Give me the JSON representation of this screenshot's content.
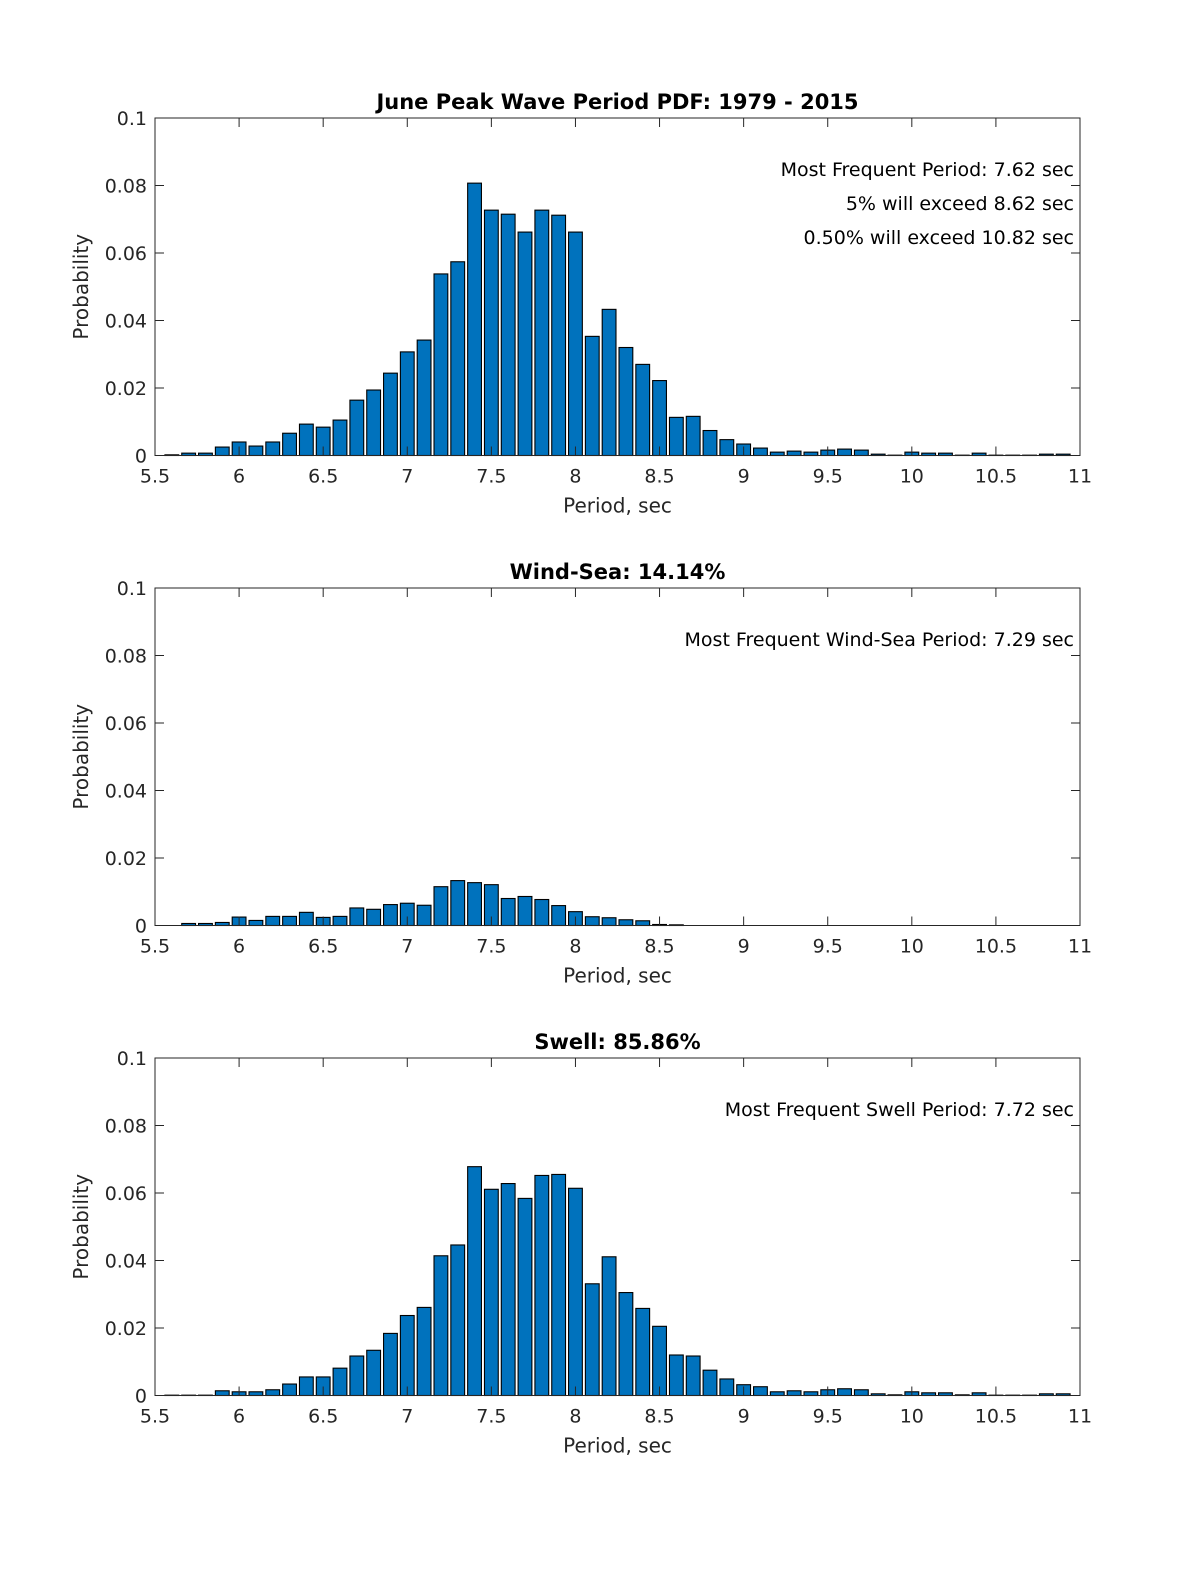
{
  "chart_data": [
    {
      "type": "bar",
      "title": "June Peak Wave Period PDF: 1979 - 2015",
      "xlabel": "Period, sec",
      "ylabel": "Probability",
      "xlim": [
        5.5,
        11
      ],
      "ylim": [
        0,
        0.1
      ],
      "xticks": [
        "5.5",
        "6",
        "6.5",
        "7",
        "7.5",
        "8",
        "8.5",
        "9",
        "9.5",
        "10",
        "10.5",
        "11"
      ],
      "yticks": [
        "0",
        "0.02",
        "0.04",
        "0.06",
        "0.08",
        "0.1"
      ],
      "grid": false,
      "bar_color": "#0072BD",
      "annotations": [
        "Most Frequent Period: 7.62 sec",
        "5% will exceed 8.62 sec",
        "0.50% will exceed 10.82 sec"
      ],
      "x": [
        5.6,
        5.7,
        5.8,
        5.9,
        6.0,
        6.1,
        6.2,
        6.3,
        6.4,
        6.5,
        6.6,
        6.7,
        6.8,
        6.9,
        7.0,
        7.1,
        7.2,
        7.3,
        7.4,
        7.5,
        7.6,
        7.7,
        7.8,
        7.9,
        8.0,
        8.1,
        8.2,
        8.3,
        8.4,
        8.5,
        8.6,
        8.7,
        8.8,
        8.9,
        9.0,
        9.1,
        9.2,
        9.3,
        9.4,
        9.5,
        9.6,
        9.7,
        9.8,
        9.9,
        10.0,
        10.1,
        10.2,
        10.3,
        10.4,
        10.5,
        10.6,
        10.7,
        10.8,
        10.9
      ],
      "values": [
        0.0002,
        0.0007,
        0.0007,
        0.0025,
        0.004,
        0.0028,
        0.004,
        0.0066,
        0.0093,
        0.0084,
        0.0105,
        0.0164,
        0.0194,
        0.0244,
        0.0307,
        0.0342,
        0.0538,
        0.0574,
        0.0807,
        0.0727,
        0.0715,
        0.0662,
        0.0727,
        0.0712,
        0.0662,
        0.0353,
        0.0433,
        0.032,
        0.027,
        0.0222,
        0.0113,
        0.0116,
        0.0074,
        0.0047,
        0.0034,
        0.0022,
        0.001,
        0.0013,
        0.001,
        0.0016,
        0.0019,
        0.0016,
        0.0004,
        0.0001,
        0.001,
        0.0007,
        0.0007,
        0.0001,
        0.0007,
        0.0001,
        0.0001,
        0.0001,
        0.0004,
        0.0004
      ]
    },
    {
      "type": "bar",
      "title": "Wind-Sea: 14.14%",
      "xlabel": "Period, sec",
      "ylabel": "Probability",
      "xlim": [
        5.5,
        11
      ],
      "ylim": [
        0,
        0.1
      ],
      "xticks": [
        "5.5",
        "6",
        "6.5",
        "7",
        "7.5",
        "8",
        "8.5",
        "9",
        "9.5",
        "10",
        "10.5",
        "11"
      ],
      "yticks": [
        "0",
        "0.02",
        "0.04",
        "0.06",
        "0.08",
        "0.1"
      ],
      "grid": false,
      "bar_color": "#0072BD",
      "annotations": [
        "Most Frequent Wind-Sea Period: 7.29 sec"
      ],
      "x": [
        5.6,
        5.7,
        5.8,
        5.9,
        6.0,
        6.1,
        6.2,
        6.3,
        6.4,
        6.5,
        6.6,
        6.7,
        6.8,
        6.9,
        7.0,
        7.1,
        7.2,
        7.3,
        7.4,
        7.5,
        7.6,
        7.7,
        7.8,
        7.9,
        8.0,
        8.1,
        8.2,
        8.3,
        8.4,
        8.5,
        8.6,
        8.7,
        8.8,
        8.9,
        9.0,
        9.1,
        9.2,
        9.3,
        9.4,
        9.5,
        9.6,
        9.7,
        9.8,
        9.9,
        10.0,
        10.1,
        10.2,
        10.3,
        10.4,
        10.5,
        10.6,
        10.7,
        10.8,
        10.9
      ],
      "values": [
        0,
        0.0006,
        0.0006,
        0.0009,
        0.0025,
        0.0015,
        0.0027,
        0.0027,
        0.0039,
        0.0024,
        0.0027,
        0.0052,
        0.0048,
        0.0062,
        0.0066,
        0.006,
        0.0115,
        0.0133,
        0.0127,
        0.0121,
        0.008,
        0.0086,
        0.0077,
        0.0059,
        0.0041,
        0.0026,
        0.0023,
        0.0017,
        0.0014,
        0.0003,
        0.0002,
        0,
        0,
        0,
        0,
        0,
        0,
        0,
        0,
        0,
        0,
        0,
        0,
        0,
        0,
        0,
        0,
        0,
        0,
        0,
        0,
        0,
        0,
        0
      ]
    },
    {
      "type": "bar",
      "title": "Swell: 85.86%",
      "xlabel": "Period, sec",
      "ylabel": "Probability",
      "xlim": [
        5.5,
        11
      ],
      "ylim": [
        0,
        0.1
      ],
      "xticks": [
        "5.5",
        "6",
        "6.5",
        "7",
        "7.5",
        "8",
        "8.5",
        "9",
        "9.5",
        "10",
        "10.5",
        "11"
      ],
      "yticks": [
        "0",
        "0.02",
        "0.04",
        "0.06",
        "0.08",
        "0.1"
      ],
      "grid": false,
      "bar_color": "#0072BD",
      "annotations": [
        "Most Frequent Swell Period: 7.72 sec"
      ],
      "x": [
        5.6,
        5.7,
        5.8,
        5.9,
        6.0,
        6.1,
        6.2,
        6.3,
        6.4,
        6.5,
        6.6,
        6.7,
        6.8,
        6.9,
        7.0,
        7.1,
        7.2,
        7.3,
        7.4,
        7.5,
        7.6,
        7.7,
        7.8,
        7.9,
        8.0,
        8.1,
        8.2,
        8.3,
        8.4,
        8.5,
        8.6,
        8.7,
        8.8,
        8.9,
        9.0,
        9.1,
        9.2,
        9.3,
        9.4,
        9.5,
        9.6,
        9.7,
        9.8,
        9.9,
        10.0,
        10.1,
        10.2,
        10.3,
        10.4,
        10.5,
        10.6,
        10.7,
        10.8,
        10.9
      ],
      "values": [
        0.0001,
        0.0001,
        0.0001,
        0.0014,
        0.0011,
        0.0011,
        0.0017,
        0.0034,
        0.0055,
        0.0055,
        0.0081,
        0.0117,
        0.0134,
        0.0184,
        0.0237,
        0.0261,
        0.0414,
        0.0446,
        0.0678,
        0.0611,
        0.0628,
        0.0584,
        0.0652,
        0.0655,
        0.0614,
        0.0331,
        0.0411,
        0.0305,
        0.0258,
        0.0205,
        0.012,
        0.0117,
        0.0075,
        0.0049,
        0.0032,
        0.0026,
        0.0011,
        0.0014,
        0.0011,
        0.0017,
        0.002,
        0.0017,
        0.0005,
        0.0002,
        0.0011,
        0.0008,
        0.0008,
        0.0002,
        0.0008,
        0.0001,
        0.0001,
        0.0001,
        0.0005,
        0.0005
      ]
    }
  ]
}
